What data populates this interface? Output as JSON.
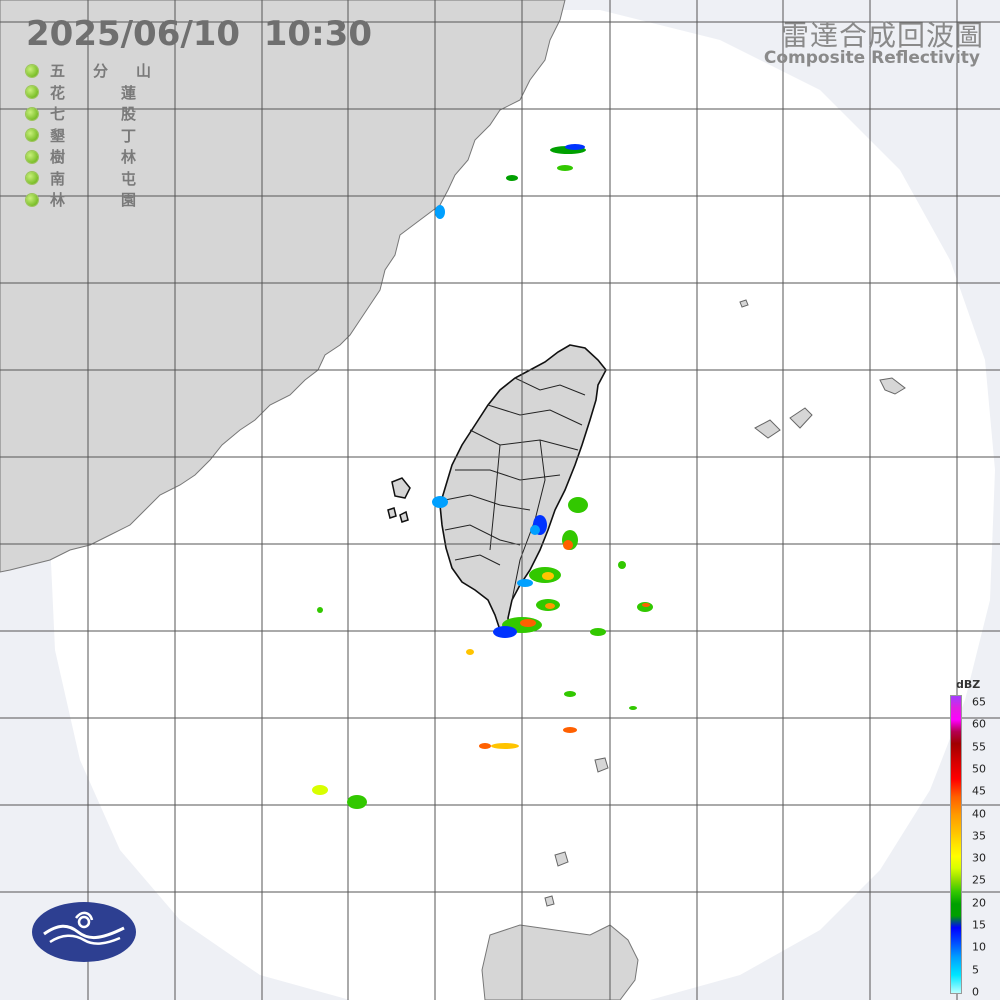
{
  "header": {
    "timestamp": "2025/06/10  10:30",
    "title_zh": "雷達合成回波圖",
    "title_en": "Composite Reflectivity"
  },
  "stations": [
    "五分山",
    "花蓮",
    "七股",
    "墾丁",
    "樹林",
    "南屯",
    "林園"
  ],
  "legend": {
    "unit": "dBZ",
    "ticks": [
      "65",
      "60",
      "55",
      "50",
      "45",
      "40",
      "35",
      "30",
      "25",
      "20",
      "15",
      "10",
      "5",
      "0"
    ]
  },
  "colors": {
    "background": "#eef0f5",
    "radar_coverage": "#ffffff",
    "land": "#d6d6d6",
    "grid": "#555555",
    "station_dot": "#7cbf2a",
    "logo": "#2d3f91"
  },
  "icons": {
    "logo": "cwa-logo-icon",
    "station_marker": "green-dot-icon"
  }
}
